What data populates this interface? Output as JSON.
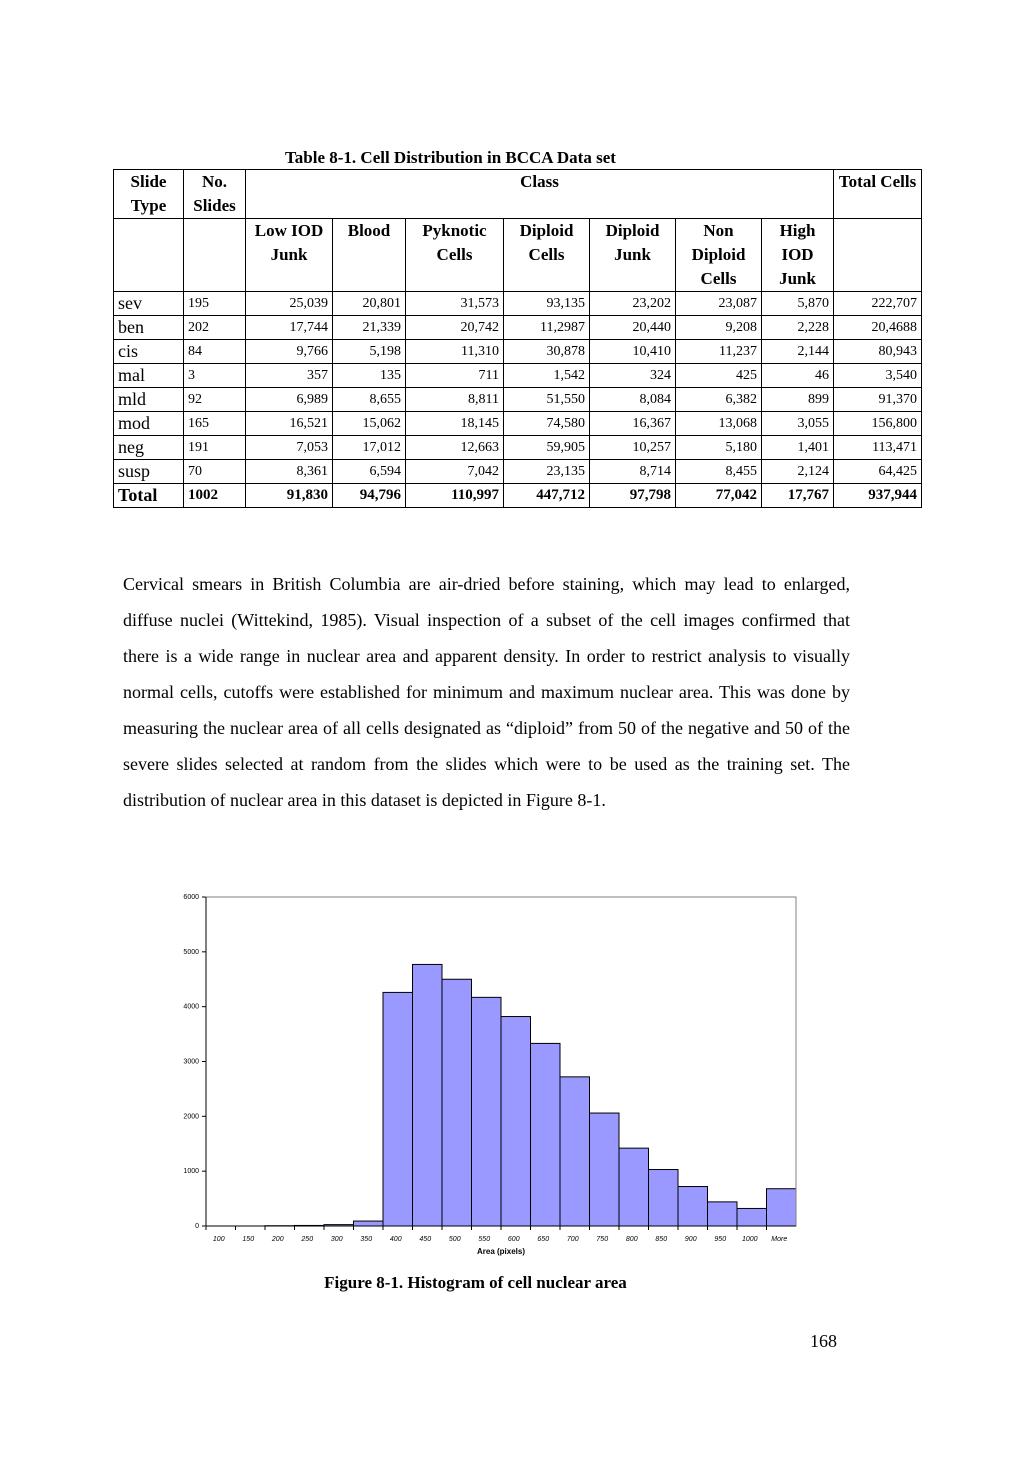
{
  "table": {
    "caption": "Table 8-1. Cell Distribution in BCCA Data set",
    "head_row1": [
      "Slide Type",
      "No. Slides",
      "Class",
      "Total Cells"
    ],
    "class_columns": [
      "Low IOD Junk",
      "Blood",
      "Pyknotic Cells",
      "Diploid Cells",
      "Diploid Junk",
      "Non Diploid Cells",
      "High IOD Junk"
    ],
    "rows": [
      [
        "sev",
        "195",
        "25,039",
        "20,801",
        "31,573",
        "93,135",
        "23,202",
        "23,087",
        "5,870",
        "222,707"
      ],
      [
        "ben",
        "202",
        "17,744",
        "21,339",
        "20,742",
        "11,2987",
        "20,440",
        "9,208",
        "2,228",
        "20,4688"
      ],
      [
        "cis",
        "84",
        "9,766",
        "5,198",
        "11,310",
        "30,878",
        "10,410",
        "11,237",
        "2,144",
        "80,943"
      ],
      [
        "mal",
        "3",
        "357",
        "135",
        "711",
        "1,542",
        "324",
        "425",
        "46",
        "3,540"
      ],
      [
        "mld",
        "92",
        "6,989",
        "8,655",
        "8,811",
        "51,550",
        "8,084",
        "6,382",
        "899",
        "91,370"
      ],
      [
        "mod",
        "165",
        "16,521",
        "15,062",
        "18,145",
        "74,580",
        "16,367",
        "13,068",
        "3,055",
        "156,800"
      ],
      [
        "neg",
        "191",
        "7,053",
        "17,012",
        "12,663",
        "59,905",
        "10,257",
        "5,180",
        "1,401",
        "113,471"
      ],
      [
        "susp",
        "70",
        "8,361",
        "6,594",
        "7,042",
        "23,135",
        "8,714",
        "8,455",
        "2,124",
        "64,425"
      ]
    ],
    "total_row": [
      "Total",
      "1002",
      "91,830",
      "94,796",
      "110,997",
      "447,712",
      "97,798",
      "77,042",
      "17,767",
      "937,944"
    ]
  },
  "paragraph": "Cervical smears in British Columbia are air-dried before staining, which may lead to enlarged, diffuse nuclei (Wittekind, 1985). Visual inspection of a subset of the cell images confirmed that there is a wide range in nuclear area and apparent density. In order to restrict analysis to visually normal cells, cutoffs were established for minimum and maximum nuclear area. This was done by measuring the nuclear area of all cells designated as “diploid” from 50 of the negative and 50 of the severe slides selected at random from the slides which were to be used as the training set. The distribution of nuclear area in this dataset is depicted in Figure 8-1.",
  "chart_data": {
    "type": "bar",
    "categories": [
      "100",
      "150",
      "200",
      "250",
      "300",
      "350",
      "400",
      "450",
      "500",
      "550",
      "600",
      "650",
      "700",
      "750",
      "800",
      "850",
      "900",
      "950",
      "1000",
      "More"
    ],
    "values": [
      0,
      0,
      5,
      10,
      25,
      90,
      4260,
      4770,
      4500,
      4170,
      3820,
      3330,
      2720,
      2060,
      1420,
      1030,
      720,
      440,
      320,
      680
    ],
    "xlabel": "Area (pixels)",
    "ylabel": "",
    "ylim": [
      0,
      6000
    ],
    "yticks": [
      "0",
      "1000",
      "2000",
      "3000",
      "4000",
      "5000",
      "6000"
    ],
    "bar_color": "#9999ff",
    "grid": false
  },
  "figure_caption": "Figure 8-1. Histogram of cell nuclear area",
  "page_number": "168"
}
